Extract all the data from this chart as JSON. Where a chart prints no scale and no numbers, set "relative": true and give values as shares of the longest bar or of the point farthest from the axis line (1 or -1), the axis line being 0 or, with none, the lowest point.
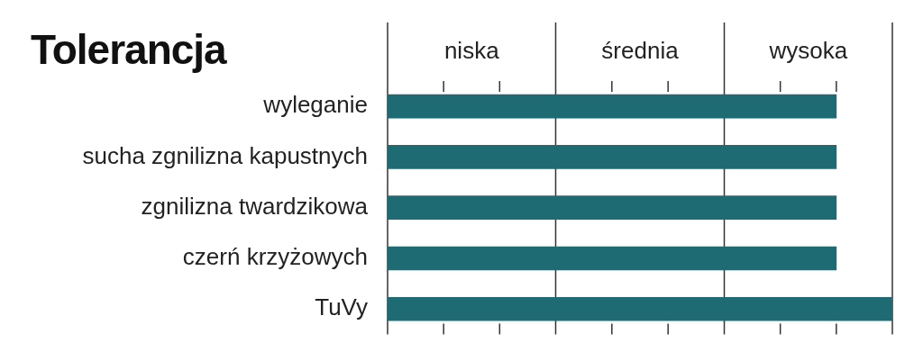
{
  "chart_data": {
    "type": "bar",
    "orientation": "horizontal",
    "title": "Tolerancja",
    "relative": true,
    "categories": [
      "wyleganie",
      "sucha zgnilizna kapustnych",
      "zgnilizna twardzikowa",
      "czerń krzyżowych",
      "TuVy"
    ],
    "values": [
      0.889,
      0.889,
      0.889,
      0.889,
      1
    ],
    "color": "#1f6b73",
    "ref_lines": [
      {
        "axis": "x",
        "value": 0
      },
      {
        "axis": "x",
        "value": 0.333
      },
      {
        "axis": "x",
        "value": 0.667
      },
      {
        "axis": "x",
        "value": 1
      }
    ],
    "annotations": [
      "niska",
      "średnia",
      "wysoka"
    ],
    "legend": false
  }
}
